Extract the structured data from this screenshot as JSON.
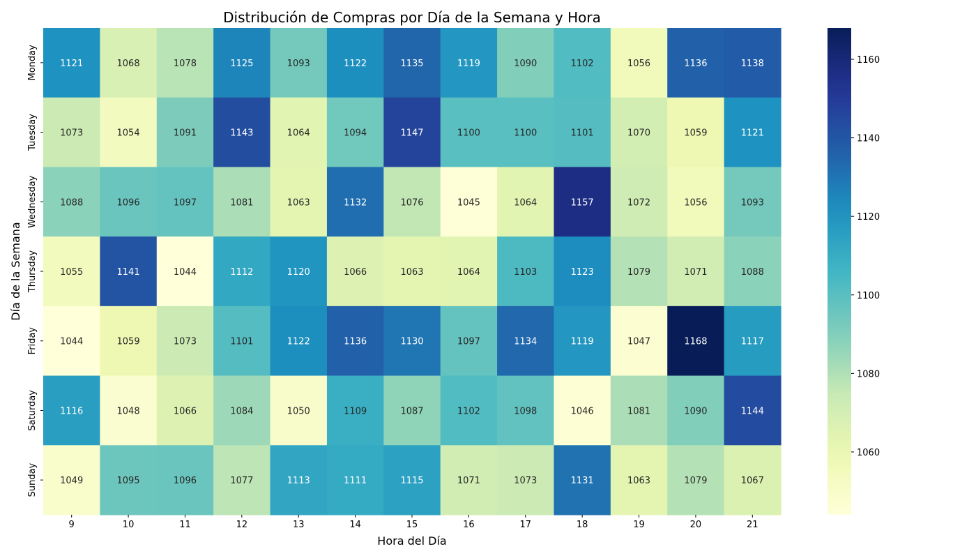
{
  "chart_data": {
    "type": "heatmap",
    "title": "Distribución de Compras por Día de la Semana y Hora",
    "xlabel": "Hora del Día",
    "ylabel": "Día de la Semana",
    "x": [
      "9",
      "10",
      "11",
      "12",
      "13",
      "14",
      "15",
      "16",
      "17",
      "18",
      "19",
      "20",
      "21"
    ],
    "y": [
      "Monday",
      "Tuesday",
      "Wednesday",
      "Thursday",
      "Friday",
      "Saturday",
      "Sunday"
    ],
    "values": [
      [
        1121,
        1068,
        1078,
        1125,
        1093,
        1122,
        1135,
        1119,
        1090,
        1102,
        1056,
        1136,
        1138
      ],
      [
        1073,
        1054,
        1091,
        1143,
        1064,
        1094,
        1147,
        1100,
        1100,
        1101,
        1070,
        1059,
        1121
      ],
      [
        1088,
        1096,
        1097,
        1081,
        1063,
        1132,
        1076,
        1045,
        1064,
        1157,
        1072,
        1056,
        1093
      ],
      [
        1055,
        1141,
        1044,
        1112,
        1120,
        1066,
        1063,
        1064,
        1103,
        1123,
        1079,
        1071,
        1088
      ],
      [
        1044,
        1059,
        1073,
        1101,
        1122,
        1136,
        1130,
        1097,
        1134,
        1119,
        1047,
        1168,
        1117
      ],
      [
        1116,
        1048,
        1066,
        1084,
        1050,
        1109,
        1087,
        1102,
        1098,
        1046,
        1081,
        1090,
        1144
      ],
      [
        1049,
        1095,
        1096,
        1077,
        1113,
        1111,
        1115,
        1071,
        1073,
        1131,
        1063,
        1079,
        1067
      ]
    ],
    "colormap": "YlGnBu",
    "colorbar": {
      "range": [
        1044,
        1168
      ],
      "ticks": [
        1060,
        1080,
        1100,
        1120,
        1140,
        1160
      ]
    },
    "annotations": "cell values shown",
    "grid": false,
    "legend": "colorbar right"
  }
}
